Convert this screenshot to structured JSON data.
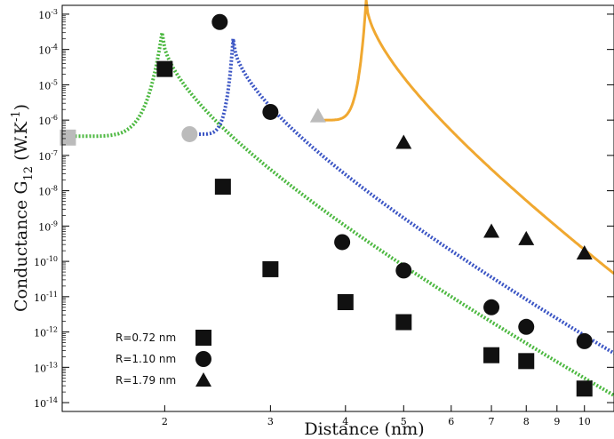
{
  "chart_data": {
    "type": "scatter",
    "xlabel": "Distance (nm)",
    "ylabel_main": "Conductance G",
    "ylabel_sub": "12",
    "ylabel_unit": " (W.K",
    "ylabel_exp": "-1",
    "ylabel_close": ")",
    "x_scale": "log",
    "y_scale": "log",
    "xlim": [
      1.35,
      11.2
    ],
    "ylim_exp": [
      -14.25,
      -2.75
    ],
    "x_ticks": [
      {
        "value": 2,
        "label": "2"
      },
      {
        "value": 3,
        "label": "3"
      },
      {
        "value": 4,
        "label": "4"
      },
      {
        "value": 5,
        "label": "5"
      },
      {
        "value": 6,
        "label": "6"
      },
      {
        "value": 7,
        "label": "7"
      },
      {
        "value": 8,
        "label": "8"
      },
      {
        "value": 9,
        "label": "9"
      },
      {
        "value": 10,
        "label": "10"
      }
    ],
    "y_ticks": [
      {
        "exp": -3,
        "label": "10",
        "sup": "-3"
      },
      {
        "exp": -4,
        "label": "10",
        "sup": "-4"
      },
      {
        "exp": -5,
        "label": "10",
        "sup": "-5"
      },
      {
        "exp": -6,
        "label": "10",
        "sup": "-6"
      },
      {
        "exp": -7,
        "label": "10",
        "sup": "-7"
      },
      {
        "exp": -8,
        "label": "10",
        "sup": "-8"
      },
      {
        "exp": -9,
        "label": "10",
        "sup": "-9"
      },
      {
        "exp": -10,
        "label": "10",
        "sup": "-10"
      },
      {
        "exp": -11,
        "label": "10",
        "sup": "-11"
      },
      {
        "exp": -12,
        "label": "10",
        "sup": "-12"
      },
      {
        "exp": -13,
        "label": "10",
        "sup": "-13"
      },
      {
        "exp": -14,
        "label": "10",
        "sup": "-14"
      }
    ],
    "series": [
      {
        "name": "R=0.72 nm",
        "marker": "square",
        "color": "#111111",
        "points": [
          {
            "x": 1.38,
            "y": 3.2e-07,
            "color": "#bbbbbb"
          },
          {
            "x": 2.0,
            "y": 2.8e-05
          },
          {
            "x": 2.5,
            "y": 1.3e-08
          },
          {
            "x": 3.0,
            "y": 6e-11
          },
          {
            "x": 4.0,
            "y": 7e-12
          },
          {
            "x": 5.0,
            "y": 1.9e-12
          },
          {
            "x": 7.0,
            "y": 2.2e-13
          },
          {
            "x": 8.0,
            "y": 1.5e-13
          },
          {
            "x": 10.0,
            "y": 2.5e-14
          }
        ],
        "curve": {
          "color": "#4cb840",
          "style": "dotted",
          "peak_x": 1.98,
          "peak_y": 0.0003,
          "left_start_x": 1.38,
          "left_start_y": 3.5e-07,
          "right_end_x": 11.2,
          "right_end_y": 1.6e-14
        }
      },
      {
        "name": "R=1.10 nm",
        "marker": "circle",
        "color": "#111111",
        "points": [
          {
            "x": 2.2,
            "y": 4e-07,
            "color": "#bbbbbb"
          },
          {
            "x": 2.47,
            "y": 0.0006
          },
          {
            "x": 3.0,
            "y": 1.7e-06
          },
          {
            "x": 3.95,
            "y": 3.5e-10
          },
          {
            "x": 5.0,
            "y": 5.5e-11
          },
          {
            "x": 7.0,
            "y": 5e-12
          },
          {
            "x": 8.0,
            "y": 1.4e-12
          },
          {
            "x": 10.0,
            "y": 5.5e-13
          }
        ],
        "curve": {
          "color": "#3b55c4",
          "style": "dotted",
          "peak_x": 2.6,
          "peak_y": 0.0002,
          "left_start_x": 2.22,
          "left_start_y": 4e-07,
          "right_end_x": 11.2,
          "right_end_y": 2.5e-13
        }
      },
      {
        "name": "R=1.79 nm",
        "marker": "triangle",
        "color": "#111111",
        "points": [
          {
            "x": 3.6,
            "y": 1.3e-06,
            "color": "#bbbbbb"
          },
          {
            "x": 5.0,
            "y": 2.3e-07
          },
          {
            "x": 7.0,
            "y": 7e-10
          },
          {
            "x": 8.0,
            "y": 4.3e-10
          },
          {
            "x": 10.0,
            "y": 1.7e-10
          }
        ],
        "curve": {
          "color": "#f0a830",
          "style": "solid",
          "peak_x": 4.33,
          "peak_y": 0.0025,
          "left_start_x": 3.6,
          "left_start_y": 1e-06,
          "right_end_x": 11.2,
          "right_end_y": 4.5e-11
        }
      }
    ],
    "legend": {
      "placement": "bottom-left",
      "entries": [
        {
          "label": "R=0.72 nm",
          "marker": "square"
        },
        {
          "label": "R=1.10 nm",
          "marker": "circle"
        },
        {
          "label": "R=1.79 nm",
          "marker": "triangle"
        }
      ]
    },
    "grid": false
  }
}
